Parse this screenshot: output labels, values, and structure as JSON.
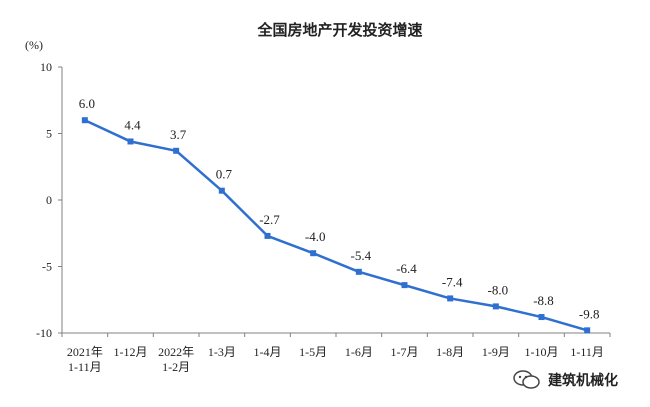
{
  "chart_data": {
    "type": "line",
    "title": "全国房地产开发投资增速",
    "ylabel": "(%)",
    "ylim": [
      -10,
      10
    ],
    "yticks": [
      10,
      5,
      0,
      -5,
      -10
    ],
    "categories": [
      [
        "2021年",
        "1-11月"
      ],
      [
        "1-12月"
      ],
      [
        "2022年",
        "1-2月"
      ],
      [
        "1-3月"
      ],
      [
        "1-4月"
      ],
      [
        "1-5月"
      ],
      [
        "1-6月"
      ],
      [
        "1-7月"
      ],
      [
        "1-8月"
      ],
      [
        "1-9月"
      ],
      [
        "1-10月"
      ],
      [
        "1-11月"
      ]
    ],
    "series": [
      {
        "values": [
          6.0,
          4.4,
          3.7,
          0.7,
          -2.7,
          -4.0,
          -5.4,
          -6.4,
          -7.4,
          -8.0,
          -8.8,
          -9.8
        ],
        "labels": [
          "6.0",
          "4.4",
          "3.7",
          "0.7",
          "-2.7",
          "-4.0",
          "-5.4",
          "-6.4",
          "-7.4",
          "-8.0",
          "-8.8",
          "-9.8"
        ]
      }
    ],
    "colors": {
      "line": "#2f6fd0",
      "axis": "#808080",
      "text": "#222222"
    },
    "grid": false
  },
  "watermark": {
    "text": "建筑机械化",
    "icon": "wechat-icon"
  }
}
